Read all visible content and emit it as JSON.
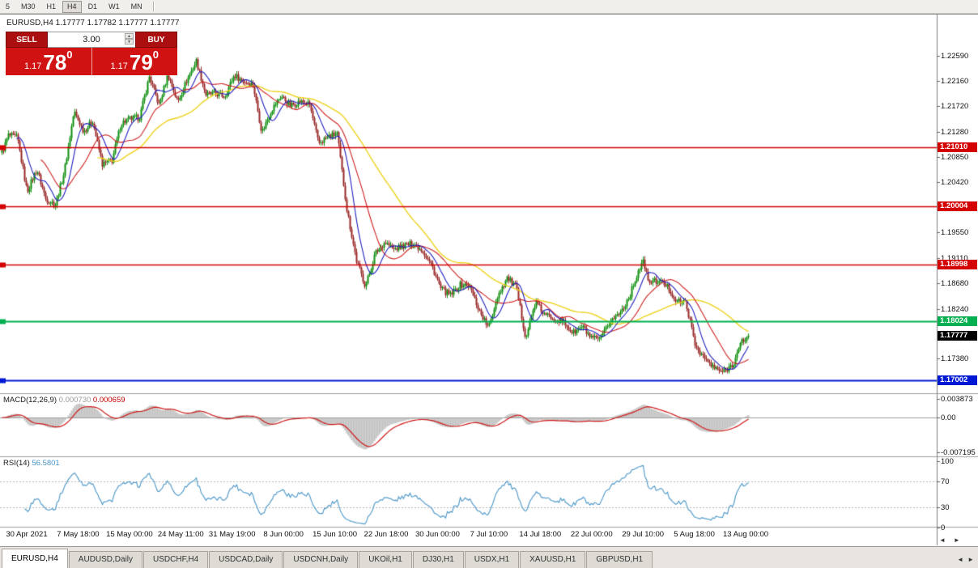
{
  "toolbar": {
    "timeframes": [
      "5",
      "M30",
      "H1",
      "H4",
      "D1",
      "W1",
      "MN"
    ],
    "active": "H4"
  },
  "chart": {
    "title": "EURUSD,H4 1.17777 1.17782 1.17777 1.17777"
  },
  "trade_panel": {
    "sell_label": "SELL",
    "buy_label": "BUY",
    "volume": "3.00",
    "sell_price_small": "1.17",
    "sell_price_big": "78",
    "sell_price_sup": "0",
    "buy_price_small": "1.17",
    "buy_price_big": "79",
    "buy_price_sup": "0"
  },
  "macd_label": {
    "name": "MACD(12,26,9)",
    "main": "0.000730",
    "signal": "0.000659"
  },
  "rsi_label": {
    "name": "RSI(14)",
    "value": "56.5801"
  },
  "icons": {
    "left_arrow": "◄",
    "right_arrow": "►",
    "spin_up": "▲",
    "spin_down": "▼"
  },
  "tabs": {
    "active": "EURUSD,H4",
    "items": [
      "EURUSD,H4",
      "AUDUSD,Daily",
      "USDCHF,H4",
      "USDCAD,Daily",
      "USDCNH,Daily",
      "UKOil,H1",
      "DJ30,H1",
      "USDX,H1",
      "XAUUSD,H1",
      "GBPUSD,H1"
    ]
  },
  "chart_data": {
    "type": "candlestick",
    "symbol": "EURUSD",
    "timeframe": "H4",
    "title": "EURUSD,H4",
    "x_labels": [
      "30 Apr 2021",
      "7 May 18:00",
      "15 May 00:00",
      "24 May 11:00",
      "31 May 19:00",
      "8 Jun 00:00",
      "15 Jun 10:00",
      "22 Jun 18:00",
      "30 Jun 00:00",
      "7 Jul 10:00",
      "14 Jul 18:00",
      "22 Jul 00:00",
      "29 Jul 10:00",
      "5 Aug 18:00",
      "13 Aug 00:00"
    ],
    "y_axis_labels": [
      "1.22590",
      "1.22160",
      "1.21720",
      "1.21280",
      "1.20850",
      "1.20420",
      "1.19550",
      "1.19110",
      "1.18680",
      "1.18240",
      "1.17380"
    ],
    "price_range": {
      "top": 1.232,
      "bottom": 1.168
    },
    "hlines": [
      {
        "price": 1.2101,
        "label": "1.21010",
        "color": "#d40000",
        "width": 1.6
      },
      {
        "price": 1.20004,
        "label": "1.20004",
        "color": "#d40000",
        "width": 1.6
      },
      {
        "price": 1.18998,
        "label": "1.18998",
        "color": "#d40000",
        "width": 1.6
      },
      {
        "price": 1.18024,
        "label": "1.18024",
        "color": "#00b050",
        "width": 1.8
      },
      {
        "price": 1.17002,
        "label": "1.17002",
        "color": "#0018d4",
        "width": 2.2
      }
    ],
    "current_price": {
      "price": 1.17777,
      "label": "1.17777",
      "color": "#000000"
    },
    "bar_count": 462,
    "candle_colors": {
      "up": "#0f8f0f",
      "down": "#9a2828"
    },
    "moving_averages": [
      {
        "period": 60,
        "color": "#edd31c"
      },
      {
        "period": 25,
        "color": "#d02020"
      },
      {
        "period": 10,
        "color": "#2020c0"
      }
    ],
    "price_anchors": [
      [
        0,
        1.2085
      ],
      [
        10,
        1.2122
      ],
      [
        21,
        1.2118
      ],
      [
        33,
        1.2025
      ],
      [
        45,
        1.2064
      ],
      [
        56,
        1.2013
      ],
      [
        68,
        1.2003
      ],
      [
        79,
        1.206
      ],
      [
        91,
        1.2163
      ],
      [
        103,
        1.2129
      ],
      [
        114,
        1.2147
      ],
      [
        126,
        1.2072
      ],
      [
        138,
        1.2079
      ],
      [
        149,
        1.2143
      ],
      [
        160,
        1.215
      ],
      [
        172,
        1.2153
      ],
      [
        184,
        1.2223
      ],
      [
        196,
        1.2174
      ],
      [
        207,
        1.2227
      ],
      [
        219,
        1.2179
      ],
      [
        230,
        1.2216
      ],
      [
        242,
        1.225
      ],
      [
        254,
        1.2192
      ],
      [
        265,
        1.2194
      ],
      [
        277,
        1.2189
      ],
      [
        289,
        1.2226
      ],
      [
        300,
        1.2215
      ],
      [
        312,
        1.221
      ],
      [
        323,
        1.2127
      ],
      [
        335,
        1.2166
      ],
      [
        347,
        1.219
      ],
      [
        358,
        1.2173
      ],
      [
        370,
        1.218
      ],
      [
        382,
        1.2175
      ],
      [
        393,
        1.2108
      ],
      [
        405,
        1.212
      ],
      [
        416,
        1.2125
      ],
      [
        422,
        1.206
      ],
      [
        428,
        1.1995
      ],
      [
        434,
        1.195
      ],
      [
        440,
        1.1906
      ],
      [
        451,
        1.1863
      ],
      [
        457,
        1.189
      ],
      [
        463,
        1.1919
      ],
      [
        475,
        1.1939
      ],
      [
        486,
        1.1926
      ],
      [
        498,
        1.1932
      ],
      [
        510,
        1.1936
      ],
      [
        521,
        1.1925
      ],
      [
        533,
        1.1898
      ],
      [
        544,
        1.1858
      ],
      [
        556,
        1.1847
      ],
      [
        568,
        1.1865
      ],
      [
        579,
        1.1864
      ],
      [
        591,
        1.1823
      ],
      [
        603,
        1.179
      ],
      [
        614,
        1.1846
      ],
      [
        626,
        1.1877
      ],
      [
        637,
        1.1861
      ],
      [
        649,
        1.1774
      ],
      [
        661,
        1.1836
      ],
      [
        672,
        1.1813
      ],
      [
        684,
        1.1808
      ],
      [
        696,
        1.18
      ],
      [
        707,
        1.1782
      ],
      [
        719,
        1.1793
      ],
      [
        730,
        1.1772
      ],
      [
        742,
        1.1772
      ],
      [
        754,
        1.1804
      ],
      [
        765,
        1.1816
      ],
      [
        777,
        1.1845
      ],
      [
        789,
        1.1893
      ],
      [
        795,
        1.1905
      ],
      [
        800,
        1.187
      ],
      [
        812,
        1.1872
      ],
      [
        823,
        1.1864
      ],
      [
        835,
        1.1837
      ],
      [
        847,
        1.1834
      ],
      [
        858,
        1.1762
      ],
      [
        870,
        1.1738
      ],
      [
        881,
        1.1722
      ],
      [
        893,
        1.1715
      ],
      [
        905,
        1.1729
      ],
      [
        916,
        1.1768
      ],
      [
        926,
        1.17777
      ]
    ],
    "macd": {
      "params": [
        12,
        26,
        9
      ],
      "main_value": 0.00073,
      "signal_value": 0.000659,
      "axis": [
        {
          "value": 0.003873,
          "label": "0.003873"
        },
        {
          "value": 0,
          "label": "0.00"
        },
        {
          "value": -0.007195,
          "label": "-0.007195"
        }
      ],
      "histogram_color": "#c2c2c2",
      "signal_color": "#d01818"
    },
    "rsi": {
      "period": 14,
      "value": 56.5801,
      "axis": [
        "100",
        "70",
        "30",
        "0"
      ],
      "levels": [
        70,
        30
      ],
      "color": "#4a96c8",
      "level_color": "#b8b8b8"
    }
  }
}
